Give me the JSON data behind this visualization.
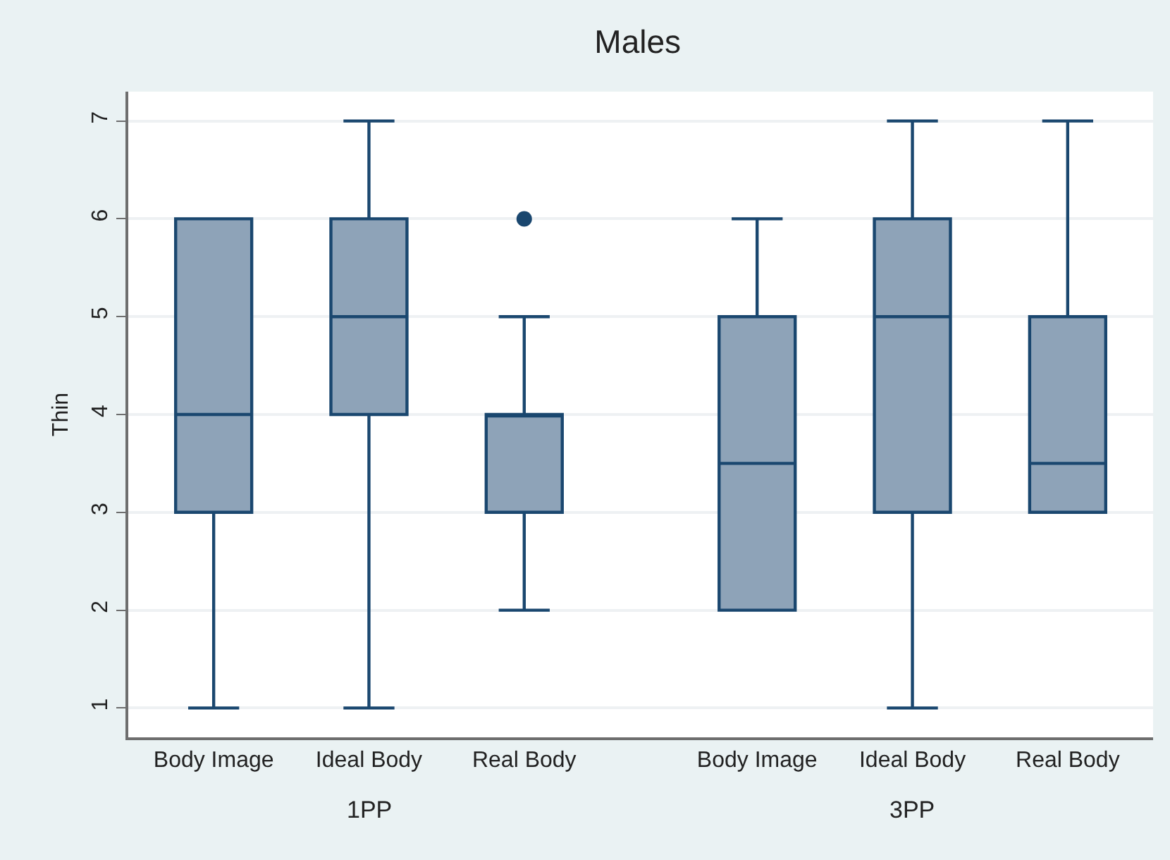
{
  "chart_data": {
    "type": "box",
    "title": "Males",
    "ylabel": "Thin",
    "categories": [
      "Body Image",
      "Ideal Body",
      "Real Body",
      "Body Image",
      "Ideal Body",
      "Real Body"
    ],
    "annotations": [
      "1PP",
      "3PP"
    ],
    "series": [
      {
        "color": "#8ea3b8",
        "boxes": [
          {
            "low": 1,
            "q1": 3,
            "median": 4,
            "q3": 6,
            "high": 6
          },
          {
            "low": 1,
            "q1": 4,
            "median": 5,
            "q3": 6,
            "high": 7
          },
          {
            "low": 2,
            "q1": 3,
            "median": 4,
            "q3": 4,
            "high": 5,
            "outliers": [
              6
            ]
          },
          {
            "low": 2,
            "q1": 2,
            "median": 3.5,
            "q3": 5,
            "high": 6
          },
          {
            "low": 1,
            "q1": 3,
            "median": 5,
            "q3": 6,
            "high": 7
          },
          {
            "low": 3,
            "q1": 3,
            "median": 3.5,
            "q3": 5,
            "high": 7
          }
        ]
      }
    ],
    "ylim": [
      0.7,
      7.3
    ],
    "yticks": [
      1,
      2,
      3,
      4,
      5,
      6,
      7
    ],
    "grid": "y"
  }
}
